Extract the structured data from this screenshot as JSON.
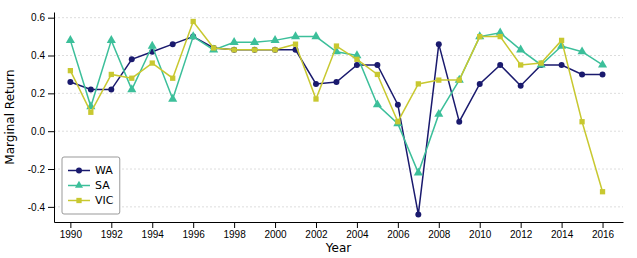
{
  "chart_data": {
    "type": "line",
    "xlabel": "Year",
    "ylabel": "Marginal Return",
    "x": [
      1990,
      1991,
      1992,
      1993,
      1994,
      1995,
      1996,
      1997,
      1998,
      1999,
      2000,
      2001,
      2002,
      2003,
      2004,
      2005,
      2006,
      2007,
      2008,
      2009,
      2010,
      2011,
      2012,
      2013,
      2014,
      2015,
      2016
    ],
    "series": [
      {
        "name": "WA",
        "color": "#1a1a6e",
        "marker": "circle",
        "values": [
          0.26,
          0.22,
          0.22,
          0.38,
          0.42,
          0.46,
          0.5,
          0.44,
          0.43,
          0.43,
          0.43,
          0.43,
          0.25,
          0.26,
          0.35,
          0.35,
          0.14,
          -0.44,
          0.46,
          0.05,
          0.25,
          0.35,
          0.24,
          0.35,
          0.35,
          0.3,
          0.3
        ]
      },
      {
        "name": "SA",
        "color": "#3cbf9a",
        "marker": "triangle",
        "values": [
          0.48,
          0.13,
          0.48,
          0.22,
          0.45,
          0.17,
          0.5,
          0.43,
          0.47,
          0.47,
          0.48,
          0.5,
          0.5,
          0.42,
          0.4,
          0.14,
          0.04,
          -0.22,
          0.09,
          0.27,
          0.5,
          0.52,
          0.43,
          0.35,
          0.45,
          0.42,
          0.35
        ]
      },
      {
        "name": "VIC",
        "color": "#c8c830",
        "marker": "square",
        "values": [
          0.32,
          0.1,
          0.3,
          0.28,
          0.36,
          0.28,
          0.58,
          0.44,
          0.43,
          0.43,
          0.43,
          0.46,
          0.17,
          0.45,
          0.38,
          0.3,
          0.05,
          0.25,
          0.27,
          0.27,
          0.5,
          0.5,
          0.35,
          0.36,
          0.48,
          0.05,
          -0.32
        ]
      }
    ],
    "xlim": [
      1989.2,
      2017.0
    ],
    "xticks": [
      1990,
      1992,
      1994,
      1996,
      1998,
      2000,
      2002,
      2004,
      2006,
      2008,
      2010,
      2012,
      2014,
      2016
    ],
    "ylim": [
      -0.48,
      0.63
    ],
    "yticks": [
      -0.4,
      -0.2,
      {
        "value": 0,
        "label": "0.0"
      },
      0.2,
      0.4,
      0.6
    ],
    "grid": "y",
    "legend": "lower left"
  }
}
